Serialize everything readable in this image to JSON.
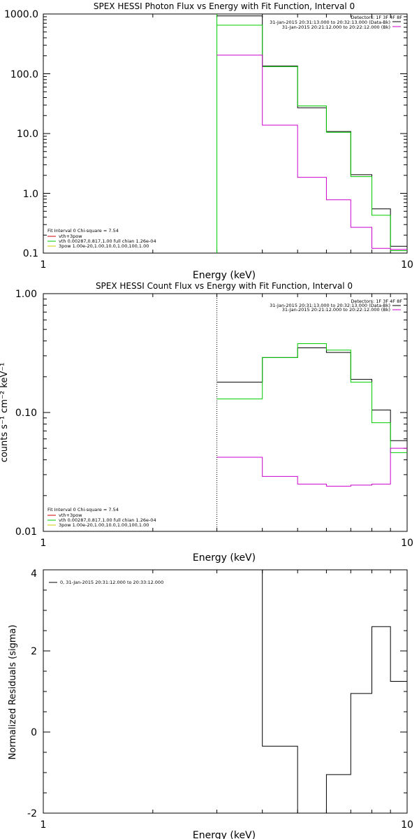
{
  "panels": [
    {
      "kind": "photon",
      "title": "SPEX HESSI Photon Flux vs Energy with Fit Function, Interval 0",
      "xlabel": "Energy (keV)",
      "ylabel": "",
      "x_ticks": [
        "1",
        "10"
      ],
      "y_ticks": [
        "0.1",
        "1.0",
        "10.0",
        "100.0",
        "1000.0"
      ],
      "legend_top": [
        {
          "text": "Detectors: 1F 3F 4F 8F",
          "color": "#000000"
        },
        {
          "text": "31-Jan-2015 20:31:13.000 to 20:32:13.000 (Data-Bk)",
          "color": "#000000"
        },
        {
          "text": "31-Jan-2015 20:21:12.000 to 20:22:12.000 (Bk)",
          "color": "#cc00cc"
        }
      ],
      "legend_bottom": [
        {
          "text": "Fit Interval  0    Chi-square = 7.54",
          "color": "#000000"
        },
        {
          "text": "vth+3pow",
          "color": "#cc0000"
        },
        {
          "text": "vth 0.00287,0.817,1.00  full chian 1.26e-04",
          "color": "#00cc00"
        },
        {
          "text": "3pow 1.00e-20,1.00,10.0,1.00,100,1.00",
          "color": "#cccc00"
        }
      ]
    },
    {
      "kind": "count",
      "title": "SPEX HESSI Count Flux vs Energy with Fit Function, Interval 0",
      "xlabel": "Energy (keV)",
      "ylabel": "counts s⁻¹ cm⁻² keV⁻¹",
      "x_ticks": [
        "1",
        "10"
      ],
      "y_ticks": [
        "0.01",
        "0.10",
        "1.00"
      ],
      "legend_top": [
        {
          "text": "Detectors: 1F 3F 4F 8F",
          "color": "#000000"
        },
        {
          "text": "31-Jan-2015 20:31:13.000 to 20:32:13.000 (Data-Bk)",
          "color": "#000000"
        },
        {
          "text": "31-Jan-2015 20:21:12.000 to 20:22:12.000 (Bk)",
          "color": "#cc00cc"
        }
      ],
      "legend_bottom": [
        {
          "text": "Fit Interval  0    Chi-square = 7.54",
          "color": "#000000"
        },
        {
          "text": "vth+3pow",
          "color": "#cc0000"
        },
        {
          "text": "vth 0.00287,0.817,1.00  full chian 1.26e-04",
          "color": "#00cc00"
        },
        {
          "text": "3pow 1.00e-20,1.00,10.0,1.00,100,1.00",
          "color": "#cccc00"
        }
      ]
    },
    {
      "kind": "residuals",
      "title": "",
      "xlabel": "Energy (keV)",
      "ylabel": "Normalized Residuals (sigma)",
      "x_ticks": [
        "1",
        "10"
      ],
      "y_ticks": [
        "-2",
        "0",
        "2",
        "4"
      ],
      "legend_top": [
        {
          "text": "0, 31-Jan-2015 20:31:12.000 to 20:33:12.000",
          "color": "#000000"
        }
      ],
      "legend_bottom": []
    }
  ],
  "chart_data": [
    {
      "type": "line",
      "title": "SPEX HESSI Photon Flux vs Energy with Fit Function, Interval 0",
      "xlabel": "Energy (keV)",
      "ylabel": "",
      "xscale": "log",
      "yscale": "log",
      "xlim": [
        1,
        10
      ],
      "ylim": [
        0.1,
        1000
      ],
      "bin_edges": [
        3,
        4,
        5,
        6,
        7,
        8,
        9,
        10
      ],
      "series": [
        {
          "name": "31-Jan-2015 20:31:13.000 to 20:32:13.000 (Data-Bk)",
          "color": "#000000",
          "values": [
            930,
            135,
            27,
            10.8,
            2.05,
            0.55,
            0.13
          ]
        },
        {
          "name": "vth 0.00287,0.817,1.00  full chian 1.26e-04",
          "color": "#00cc00",
          "values": [
            650,
            132,
            29,
            10.5,
            1.9,
            0.43,
            0.11
          ]
        },
        {
          "name": "31-Jan-2015 20:21:12.000 to 20:22:12.000 (Bk)",
          "color": "#cc00cc",
          "values": [
            205,
            13.8,
            1.85,
            0.78,
            0.27,
            0.12,
            0.115
          ]
        }
      ],
      "vlines": [
        {
          "x": 3,
          "color": "#00cc00",
          "style": "solid"
        }
      ]
    },
    {
      "type": "line",
      "title": "SPEX HESSI Count Flux vs Energy with Fit Function, Interval 0",
      "xlabel": "Energy (keV)",
      "ylabel": "counts s⁻¹ cm⁻² keV⁻¹",
      "xscale": "log",
      "yscale": "log",
      "xlim": [
        1,
        10
      ],
      "ylim": [
        0.01,
        1.0
      ],
      "bin_edges": [
        3,
        4,
        5,
        6,
        7,
        8,
        9,
        10
      ],
      "series": [
        {
          "name": "31-Jan-2015 20:31:13.000 to 20:32:13.000 (Data-Bk)",
          "color": "#000000",
          "values": [
            0.18,
            0.29,
            0.35,
            0.32,
            0.19,
            0.105,
            0.058
          ]
        },
        {
          "name": "vth 0.00287,0.817,1.00  full chian 1.26e-04",
          "color": "#00cc00",
          "values": [
            0.13,
            0.29,
            0.38,
            0.335,
            0.18,
            0.082,
            0.046
          ]
        },
        {
          "name": "31-Jan-2015 20:21:12.000 to 20:22:12.000 (Bk)",
          "color": "#cc00cc",
          "values": [
            0.042,
            0.029,
            0.025,
            0.024,
            0.0245,
            0.025,
            0.05
          ]
        }
      ],
      "vlines": [
        {
          "x": 3,
          "color": "#000000",
          "style": "dotted"
        }
      ]
    },
    {
      "type": "line",
      "title": "",
      "xlabel": "Energy (keV)",
      "ylabel": "Normalized Residuals (sigma)",
      "xscale": "log",
      "yscale": "linear",
      "xlim": [
        1,
        10
      ],
      "ylim": [
        -2,
        4
      ],
      "bin_edges": [
        3,
        4,
        5,
        6,
        7,
        8,
        9,
        10
      ],
      "series": [
        {
          "name": "0, 31-Jan-2015 20:31:12.000 to 20:33:12.000",
          "color": "#000000",
          "values": [
            4.0,
            -0.35,
            -2.0,
            -1.05,
            0.95,
            2.6,
            1.25
          ]
        }
      ]
    }
  ]
}
